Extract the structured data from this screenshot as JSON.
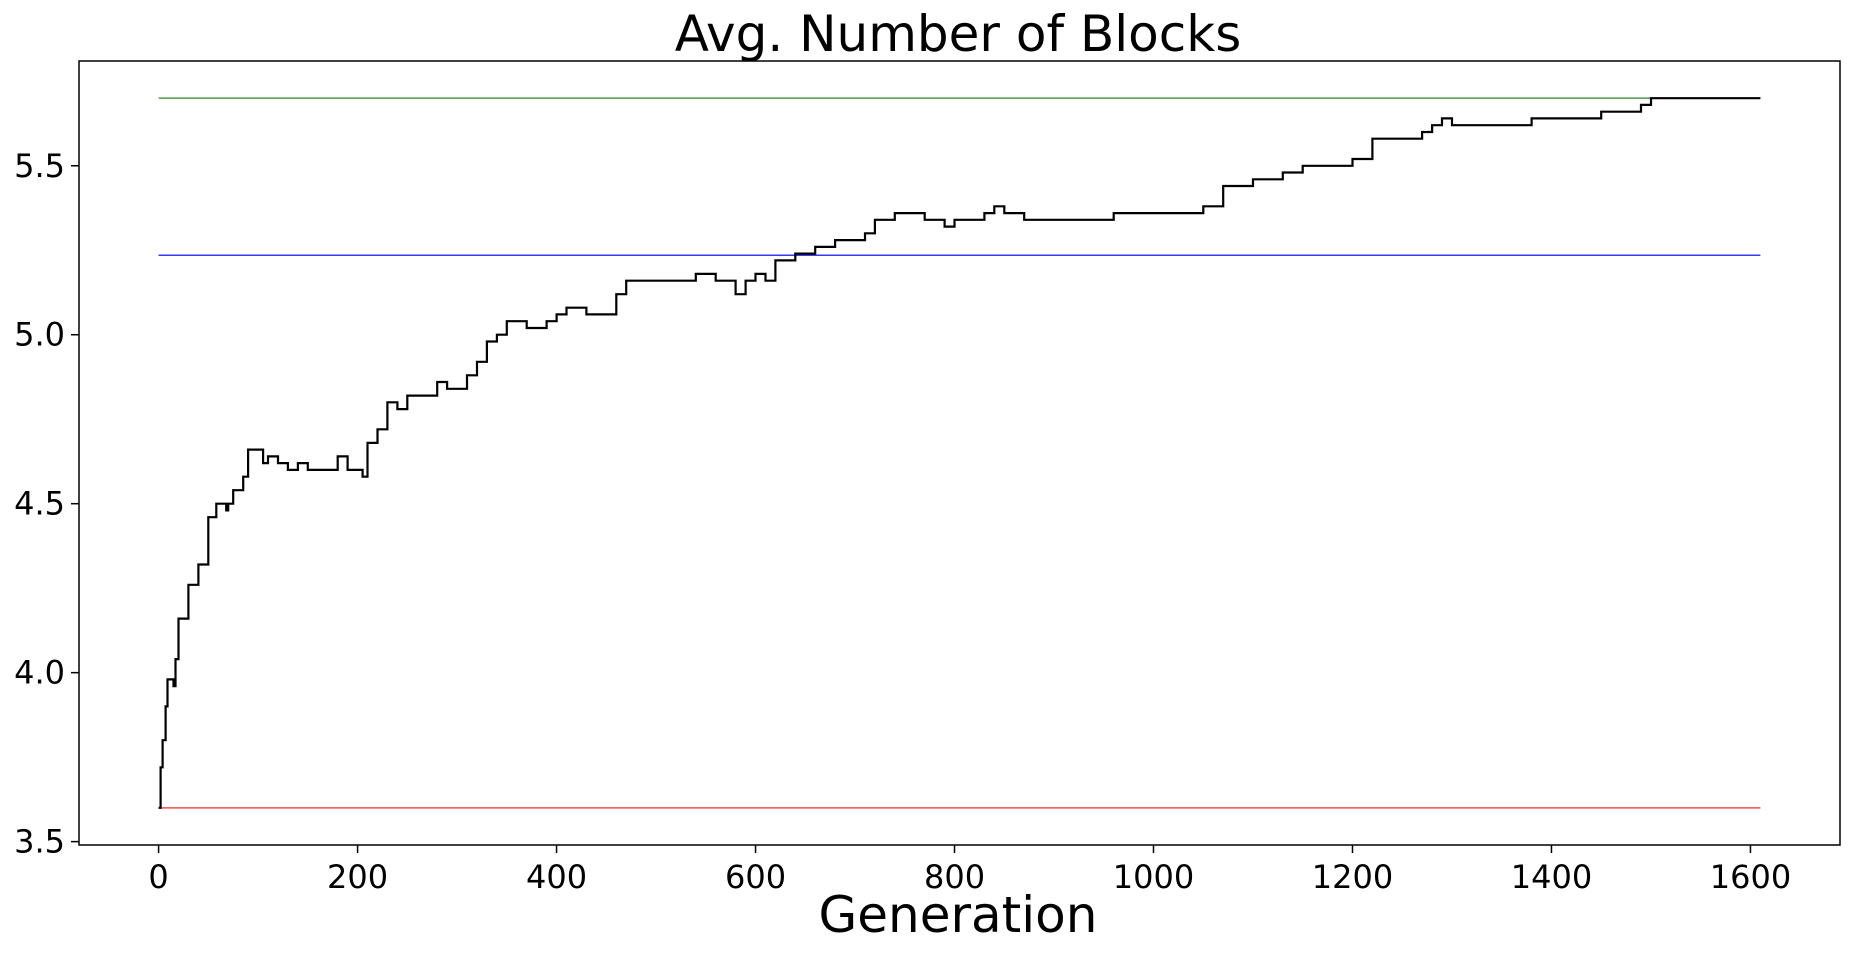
{
  "chart_data": {
    "type": "line",
    "title": "Avg. Number of Blocks",
    "xlabel": "Generation",
    "ylabel": "",
    "xlim": [
      -80,
      1690
    ],
    "ylim": [
      3.49,
      5.81
    ],
    "xticks": [
      0,
      200,
      400,
      600,
      800,
      1000,
      1200,
      1400,
      1600
    ],
    "xtick_labels": [
      "0",
      "200",
      "400",
      "600",
      "800",
      "1000",
      "1200",
      "1400",
      "1600"
    ],
    "yticks": [
      3.5,
      4.0,
      4.5,
      5.0,
      5.5
    ],
    "ytick_labels": [
      "3.5",
      "4.0",
      "4.5",
      "5.0",
      "5.5"
    ],
    "grid": false,
    "legend": "none",
    "reference_lines": [
      {
        "y": 5.7,
        "x": [
          0,
          1610
        ],
        "color": "#4a9a4a"
      },
      {
        "y": 5.235,
        "x": [
          0,
          1610
        ],
        "color": "#3a3af0"
      },
      {
        "y": 3.6,
        "x": [
          0,
          1610
        ],
        "color": "#f05050"
      }
    ],
    "series": [
      {
        "color": "#000000",
        "step": true,
        "x": [
          0,
          2,
          4,
          7,
          9,
          12,
          15,
          17,
          20,
          22,
          25,
          30,
          35,
          40,
          45,
          50,
          55,
          58,
          60,
          65,
          68,
          70,
          73,
          75,
          80,
          85,
          90,
          100,
          105,
          110,
          120,
          130,
          140,
          150,
          160,
          180,
          190,
          200,
          205,
          210,
          215,
          220,
          230,
          240,
          250,
          280,
          290,
          310,
          320,
          330,
          340,
          350,
          370,
          390,
          400,
          410,
          430,
          460,
          465,
          470,
          520,
          540,
          560,
          570,
          580,
          590,
          600,
          610,
          620,
          640,
          660,
          680,
          700,
          710,
          720,
          740,
          770,
          780,
          790,
          800,
          810,
          830,
          840,
          850,
          860,
          870,
          900,
          920,
          930,
          950,
          960,
          1000,
          1030,
          1050,
          1070,
          1100,
          1130,
          1150,
          1170,
          1200,
          1220,
          1250,
          1270,
          1280,
          1290,
          1300,
          1320,
          1360,
          1380,
          1400,
          1450,
          1470,
          1490,
          1500,
          1610
        ],
        "y": [
          3.6,
          3.72,
          3.8,
          3.9,
          3.98,
          3.98,
          3.96,
          4.04,
          4.16,
          4.16,
          4.16,
          4.26,
          4.26,
          4.32,
          4.32,
          4.46,
          4.46,
          4.5,
          4.5,
          4.5,
          4.48,
          4.5,
          4.5,
          4.54,
          4.54,
          4.58,
          4.66,
          4.66,
          4.62,
          4.64,
          4.62,
          4.6,
          4.62,
          4.6,
          4.6,
          4.64,
          4.6,
          4.6,
          4.58,
          4.68,
          4.68,
          4.72,
          4.8,
          4.78,
          4.82,
          4.86,
          4.84,
          4.88,
          4.92,
          4.98,
          5.0,
          5.04,
          5.02,
          5.04,
          5.06,
          5.08,
          5.06,
          5.12,
          5.12,
          5.16,
          5.16,
          5.18,
          5.16,
          5.16,
          5.12,
          5.16,
          5.18,
          5.16,
          5.22,
          5.24,
          5.26,
          5.28,
          5.28,
          5.3,
          5.34,
          5.36,
          5.34,
          5.34,
          5.32,
          5.34,
          5.34,
          5.36,
          5.38,
          5.36,
          5.36,
          5.34,
          5.34,
          5.34,
          5.34,
          5.34,
          5.36,
          5.36,
          5.36,
          5.38,
          5.44,
          5.46,
          5.48,
          5.5,
          5.5,
          5.52,
          5.58,
          5.58,
          5.6,
          5.62,
          5.64,
          5.62,
          5.62,
          5.62,
          5.64,
          5.64,
          5.66,
          5.66,
          5.68,
          5.7,
          5.7
        ]
      }
    ]
  }
}
